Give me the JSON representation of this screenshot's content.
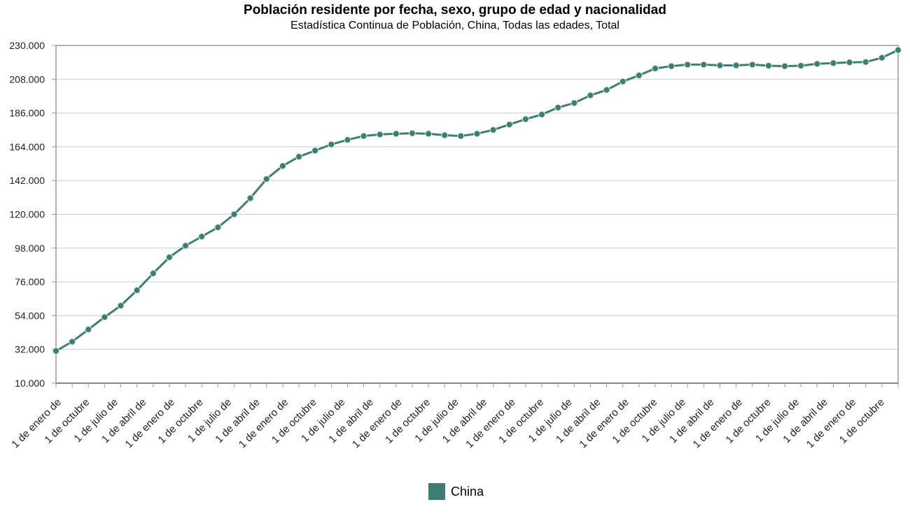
{
  "chart_data": {
    "type": "line",
    "title": "Población residente por fecha, sexo, grupo de edad y nacionalidad",
    "subtitle": "Estadística Continua de Población, China, Todas las edades, Total",
    "ylim": [
      10000,
      230000
    ],
    "y_ticks": [
      "230.000",
      "208.000",
      "186.000",
      "164.000",
      "142.000",
      "120.000",
      "98.000",
      "76.000",
      "54.000",
      "32.000",
      "10.000"
    ],
    "x_tick_labels": [
      "1 de enero de",
      "1 de octubre",
      "1 de julio de",
      "1 de abril de",
      "1 de enero de",
      "1 de octubre",
      "1 de julio de",
      "1 de abril de",
      "1 de enero de",
      "1 de octubre",
      "1 de julio de",
      "1 de abril de",
      "1 de enero de",
      "1 de octubre",
      "1 de julio de",
      "1 de abril de",
      "1 de enero de",
      "1 de octubre",
      "1 de julio de",
      "1 de abril de",
      "1 de enero de",
      "1 de octubre",
      "1 de julio de",
      "1 de abril de",
      "1 de enero de",
      "1 de octubre",
      "1 de julio de",
      "1 de abril de",
      "1 de enero de",
      "1 de octubre"
    ],
    "grid": true,
    "legend": "bottom-center",
    "series": [
      {
        "name": "China",
        "color": "#3d7d72",
        "values": [
          31000,
          37000,
          45000,
          53000,
          60500,
          70500,
          81500,
          92000,
          99500,
          105500,
          111500,
          120000,
          130500,
          143000,
          151500,
          157500,
          161500,
          165500,
          168500,
          171000,
          172000,
          172500,
          172800,
          172500,
          171500,
          171000,
          172500,
          175000,
          178500,
          182000,
          185000,
          189500,
          192500,
          197500,
          201000,
          206500,
          210500,
          215000,
          216500,
          217500,
          217500,
          217000,
          217000,
          217500,
          216800,
          216500,
          216800,
          218000,
          218500,
          219000,
          219200,
          222000,
          227000
        ]
      }
    ]
  }
}
